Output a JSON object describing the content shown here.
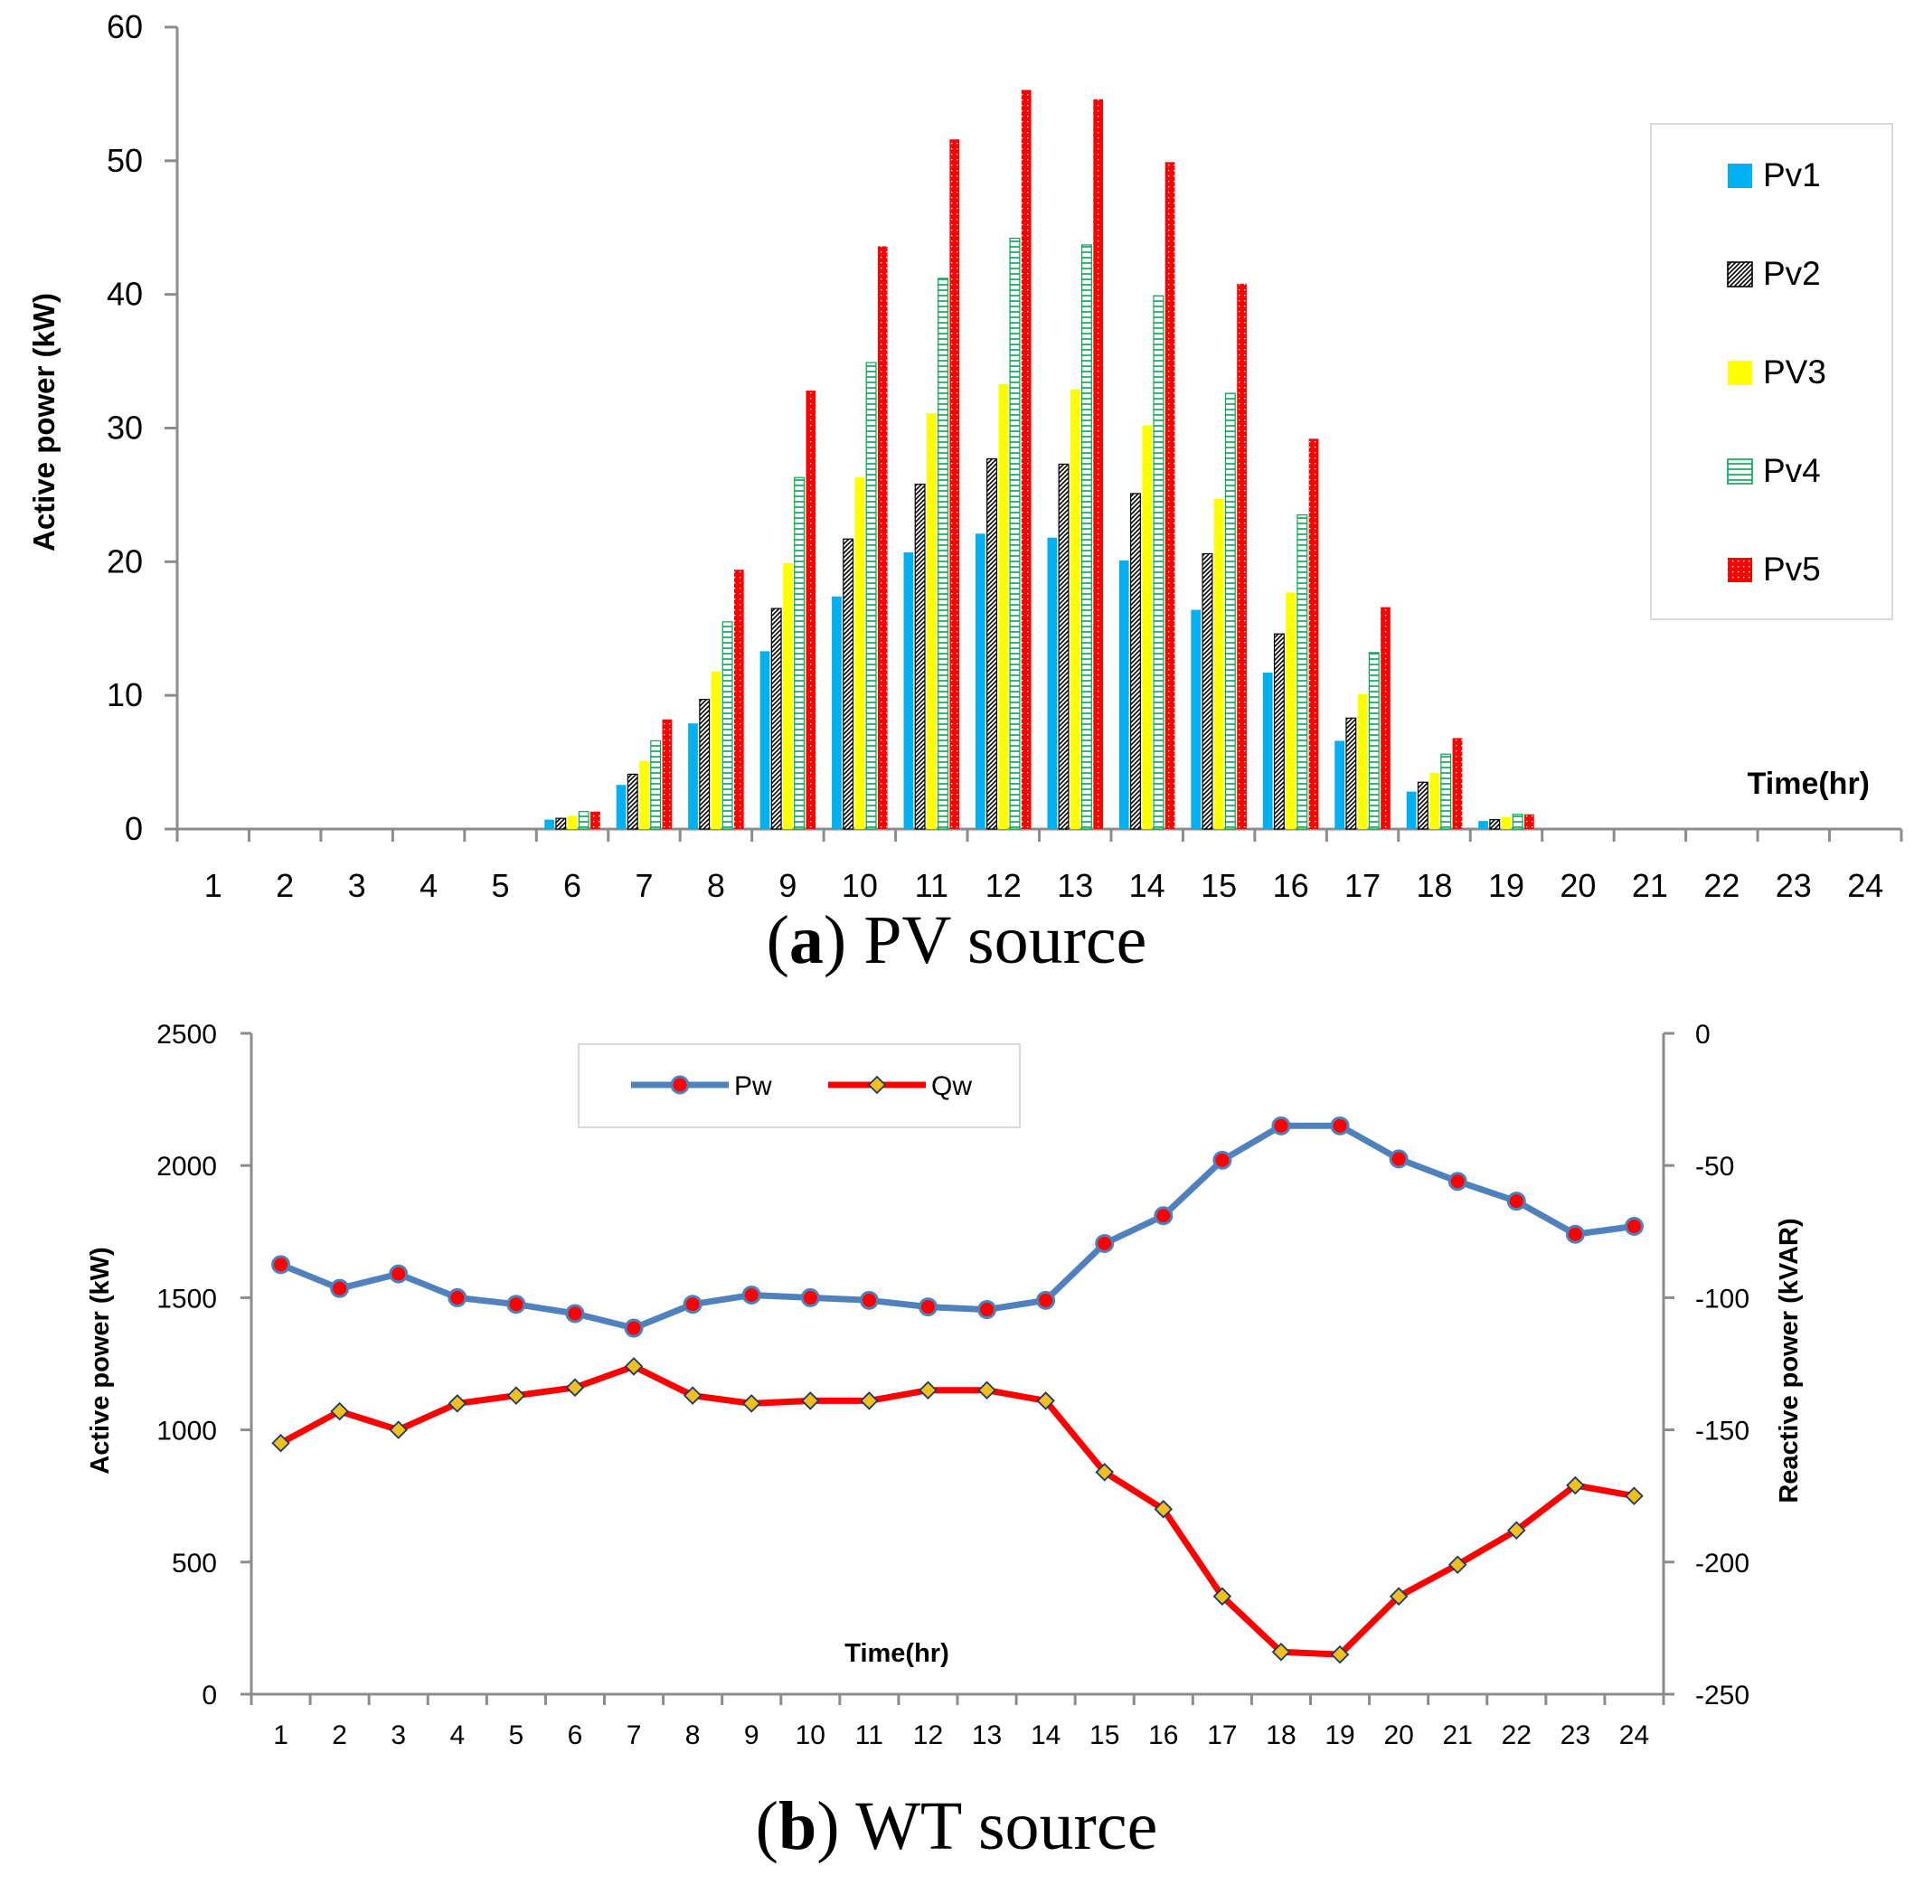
{
  "chart_data": [
    {
      "type": "bar",
      "caption": {
        "letter": "a",
        "open": "(",
        "close": ")",
        "text": " PV source"
      },
      "ylabel": "Active power (kW)",
      "xlabel": "Time(hr)",
      "ylim": [
        0,
        60
      ],
      "yticks": [
        0,
        10,
        20,
        30,
        40,
        50,
        60
      ],
      "categories": [
        "1",
        "2",
        "3",
        "4",
        "5",
        "6",
        "7",
        "8",
        "9",
        "10",
        "11",
        "12",
        "13",
        "14",
        "15",
        "16",
        "17",
        "18",
        "19",
        "20",
        "21",
        "22",
        "23",
        "24"
      ],
      "legend_position": "right",
      "series": [
        {
          "name": "Pv1",
          "color": "#00b0f0",
          "pattern": "solid",
          "values": [
            0,
            0,
            0,
            0,
            0,
            0.7,
            3.3,
            7.9,
            13.3,
            17.4,
            20.7,
            22.1,
            21.8,
            20.1,
            16.4,
            11.7,
            6.6,
            2.8,
            0.6,
            0,
            0,
            0,
            0,
            0
          ]
        },
        {
          "name": "Pv2",
          "color": "#000000",
          "pattern": "diagonal",
          "values": [
            0,
            0,
            0,
            0,
            0,
            0.8,
            4.1,
            9.7,
            16.5,
            21.7,
            25.8,
            27.7,
            27.3,
            25.1,
            20.6,
            14.6,
            8.3,
            3.5,
            0.7,
            0,
            0,
            0,
            0,
            0
          ]
        },
        {
          "name": "PV3",
          "color": "#ffff00",
          "pattern": "solid",
          "values": [
            0,
            0,
            0,
            0,
            0,
            1.0,
            5.1,
            11.8,
            19.9,
            26.3,
            31.1,
            33.3,
            32.9,
            30.2,
            24.7,
            17.7,
            10.1,
            4.2,
            0.9,
            0,
            0,
            0,
            0,
            0
          ]
        },
        {
          "name": "Pv4",
          "color": "#00a650",
          "pattern": "horizontal",
          "values": [
            0,
            0,
            0,
            0,
            0,
            1.3,
            6.6,
            15.5,
            26.3,
            34.9,
            41.2,
            44.2,
            43.7,
            39.9,
            32.6,
            23.5,
            13.2,
            5.6,
            1.1,
            0,
            0,
            0,
            0,
            0
          ]
        },
        {
          "name": "Pv5",
          "color": "#ff0000",
          "pattern": "dotted",
          "values": [
            0,
            0,
            0,
            0,
            0,
            1.3,
            8.2,
            19.4,
            32.8,
            43.6,
            51.6,
            55.3,
            54.6,
            49.9,
            40.8,
            29.2,
            16.6,
            6.8,
            1.1,
            0,
            0,
            0,
            0,
            0
          ]
        }
      ]
    },
    {
      "type": "line",
      "caption": {
        "letter": "b",
        "open": "(",
        "close": ")",
        "text": " WT source"
      },
      "ylabel": "Active power (kW)",
      "y2label": "Reactive power (kVAR)",
      "xlabel": "Time(hr)",
      "ylim": [
        0,
        2500
      ],
      "yticks": [
        0,
        500,
        1000,
        1500,
        2000,
        2500
      ],
      "y2lim": [
        -250,
        0
      ],
      "y2ticks": [
        -250,
        -200,
        -150,
        -100,
        -50,
        0
      ],
      "categories": [
        "1",
        "2",
        "3",
        "4",
        "5",
        "6",
        "7",
        "8",
        "9",
        "10",
        "11",
        "12",
        "13",
        "14",
        "15",
        "16",
        "17",
        "18",
        "19",
        "20",
        "21",
        "22",
        "23",
        "24"
      ],
      "legend_position": "top",
      "series": [
        {
          "name": "Pw",
          "color": "#4f81bd",
          "marker": "circle",
          "marker_color": "#ff0000",
          "axis": "left",
          "values": [
            1625,
            1535,
            1590,
            1500,
            1475,
            1440,
            1385,
            1475,
            1510,
            1500,
            1490,
            1465,
            1455,
            1490,
            1705,
            1810,
            2020,
            2150,
            2150,
            2025,
            1940,
            1865,
            1740,
            1770
          ]
        },
        {
          "name": "Qw",
          "color": "#ff0000",
          "marker": "diamond",
          "marker_color": "#f0c020",
          "axis": "right",
          "values": [
            -155,
            -143,
            -150,
            -140,
            -137,
            -134,
            -126,
            -137,
            -140,
            -139,
            -139,
            -135,
            -135,
            -139,
            -166,
            -180,
            -213,
            -234,
            -235,
            -213,
            -201,
            -188,
            -171,
            -175
          ]
        }
      ]
    }
  ]
}
